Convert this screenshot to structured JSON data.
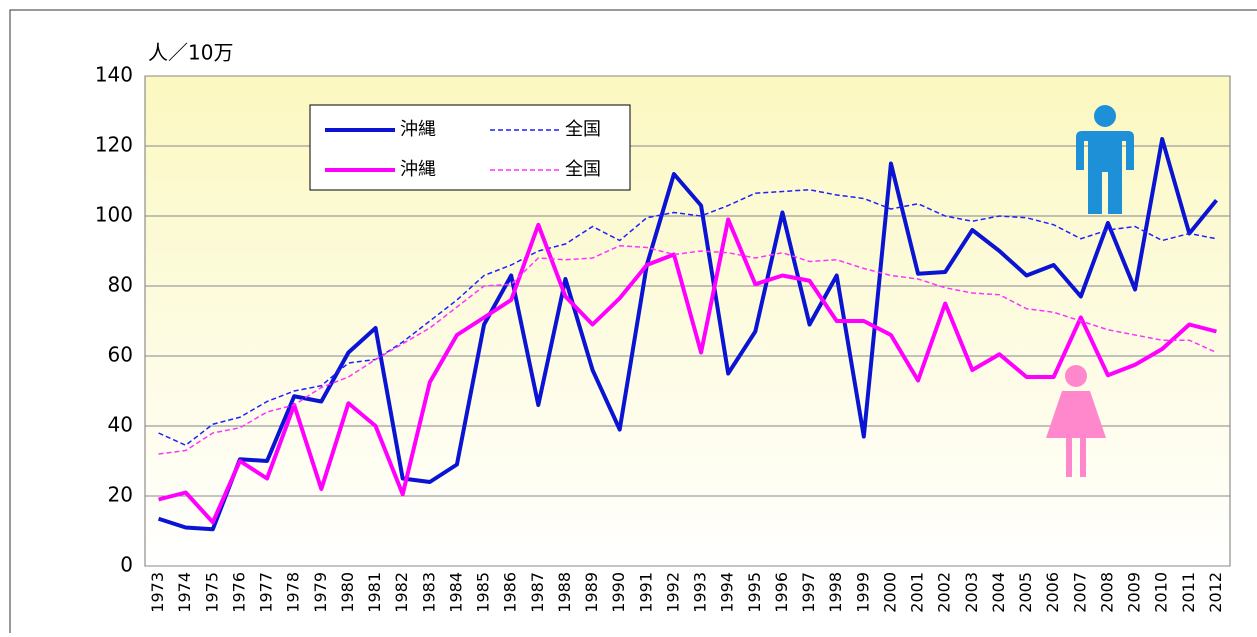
{
  "chart_data": {
    "type": "line",
    "y_label": "人／10万",
    "categories": [
      "1973",
      "1974",
      "1975",
      "1976",
      "1977",
      "1978",
      "1979",
      "1980",
      "1981",
      "1982",
      "1983",
      "1984",
      "1985",
      "1986",
      "1987",
      "1988",
      "1989",
      "1990",
      "1991",
      "1992",
      "1993",
      "1994",
      "1995",
      "1996",
      "1997",
      "1998",
      "1999",
      "2000",
      "2001",
      "2002",
      "2003",
      "2004",
      "2005",
      "2006",
      "2007",
      "2008",
      "2009",
      "2010",
      "2011",
      "2012"
    ],
    "series": [
      {
        "name": "沖縄",
        "color": "#0a14d2",
        "dashed": false,
        "values": [
          13.5,
          11,
          10.5,
          30.5,
          30,
          48.5,
          47,
          61,
          68,
          25,
          24,
          29,
          69,
          83,
          46,
          82,
          56,
          39,
          86,
          112,
          103,
          55,
          67,
          101,
          69,
          83,
          37,
          115,
          83.5,
          84,
          96,
          90,
          83,
          86,
          77,
          98,
          79,
          122,
          95,
          104.5
        ]
      },
      {
        "name": "全国",
        "color": "#1f1fff",
        "dashed": true,
        "values": [
          38,
          34.5,
          40.5,
          42.5,
          47,
          50,
          51.5,
          58,
          59,
          64,
          70,
          76,
          83,
          86,
          90,
          92,
          97,
          93,
          99.5,
          101,
          100,
          103,
          106.5,
          107,
          107.5,
          106,
          105,
          102,
          103.5,
          100,
          98.5,
          100,
          99.5,
          97.5,
          93.5,
          96,
          97,
          93,
          95,
          93.5
        ]
      },
      {
        "name": "沖縄",
        "color": "#ff00ff",
        "dashed": false,
        "values": [
          19,
          21,
          12.5,
          30,
          25,
          46,
          22,
          46.5,
          40,
          20.5,
          52.5,
          66,
          71,
          76,
          97.5,
          77,
          69,
          76.5,
          86,
          89,
          61,
          99,
          80.5,
          83,
          81.5,
          70,
          70,
          66,
          53,
          75,
          56,
          60.5,
          54,
          54,
          71,
          54.5,
          57.5,
          62,
          69,
          67
        ]
      },
      {
        "name": "全国",
        "color": "#ff33ff",
        "dashed": true,
        "values": [
          32,
          33,
          38,
          39.5,
          44,
          46,
          51,
          54,
          59,
          63.5,
          68,
          74,
          80,
          80.5,
          88,
          87.5,
          88,
          91.5,
          91,
          89,
          90,
          89.5,
          88,
          89.5,
          87,
          87.5,
          85,
          83,
          82,
          79.5,
          78,
          77.5,
          73.5,
          72.5,
          70,
          67.5,
          66,
          64.5,
          64.5,
          61
        ]
      }
    ],
    "ylim": [
      0,
      140
    ],
    "yticks": [
      0,
      20,
      40,
      60,
      80,
      100,
      120,
      140
    ],
    "grid": true
  }
}
